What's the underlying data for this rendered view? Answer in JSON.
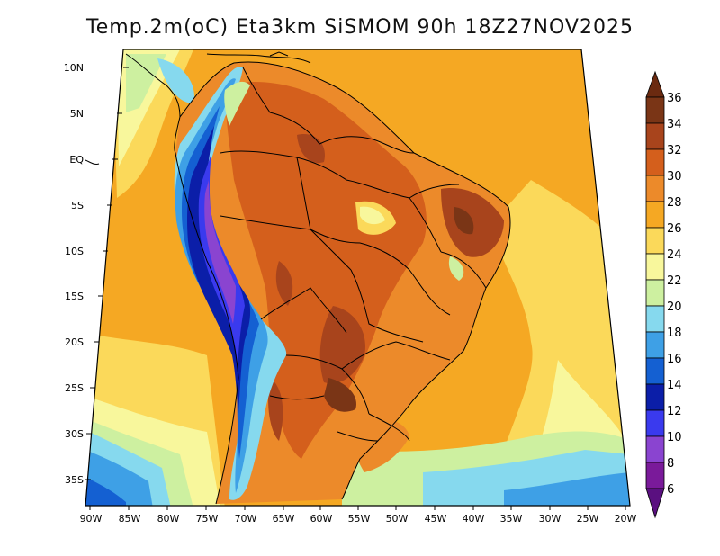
{
  "title": "Temp.2m(oC) Eta3km SiSMOM 90h 18Z27NOV2025",
  "lat_labels": [
    "10N",
    "5N",
    "EQ",
    "5S",
    "10S",
    "15S",
    "20S",
    "25S",
    "30S",
    "35S"
  ],
  "lon_labels": [
    "90W",
    "85W",
    "80W",
    "75W",
    "70W",
    "65W",
    "60W",
    "55W",
    "50W",
    "45W",
    "40W",
    "35W",
    "30W",
    "25W",
    "20W"
  ],
  "colorbar": {
    "unit": "oC",
    "levels": [
      "36",
      "34",
      "32",
      "30",
      "28",
      "26",
      "24",
      "22",
      "20",
      "18",
      "16",
      "14",
      "12",
      "10",
      "8",
      "6"
    ],
    "colors": {
      "above_36": "#6b2a10",
      "34_36": "#7a3516",
      "32_34": "#a8441c",
      "30_32": "#d45f1c",
      "28_30": "#ec8a2a",
      "26_28": "#f5a823",
      "24_26": "#fbd95a",
      "22_24": "#f8f79c",
      "20_22": "#cdf0a0",
      "18_20": "#86d9ee",
      "16_18": "#3ea0e6",
      "14_16": "#1460d2",
      "12_14": "#0b1ea8",
      "10_12": "#3a3aee",
      "8_10": "#8a44d0",
      "6_8": "#7a1a9a",
      "below_6": "#5a1080"
    }
  }
}
